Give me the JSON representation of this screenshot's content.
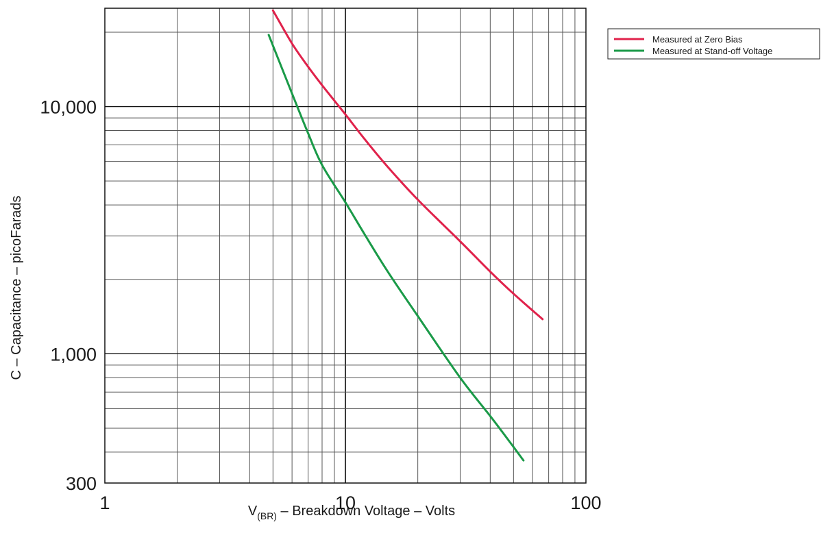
{
  "chart_data": {
    "type": "line",
    "x_scale": "log",
    "y_scale": "log",
    "xlim": [
      1,
      100
    ],
    "ylim": [
      300,
      25000
    ],
    "x_ticks": [
      1,
      10,
      100
    ],
    "x_tick_labels": [
      "1",
      "10",
      "100"
    ],
    "y_ticks": [
      300,
      1000,
      10000
    ],
    "y_tick_labels": [
      "300",
      "1,000",
      "10,000"
    ],
    "grid": true,
    "xlabel_main": "V",
    "xlabel_sub": "(BR)",
    "xlabel_rest": " – Breakdown Voltage – Volts",
    "ylabel": "C – Capacitance – picoFarads",
    "legend_position": "top-right",
    "series": [
      {
        "name": "Measured at Zero Bias",
        "color": "#e0224b",
        "x": [
          5,
          6,
          7,
          8,
          10,
          12,
          15,
          20,
          30,
          40,
          50,
          66
        ],
        "y": [
          24500,
          18000,
          14500,
          12200,
          9300,
          7400,
          5700,
          4200,
          2850,
          2150,
          1750,
          1380
        ]
      },
      {
        "name": "Measured at Stand-off Voltage",
        "color": "#1a9a48",
        "x": [
          4.8,
          6,
          7,
          8,
          10,
          12,
          15,
          20,
          30,
          40,
          50,
          55
        ],
        "y": [
          19500,
          11300,
          7800,
          5800,
          4100,
          3050,
          2150,
          1420,
          800,
          560,
          420,
          370
        ]
      }
    ]
  }
}
